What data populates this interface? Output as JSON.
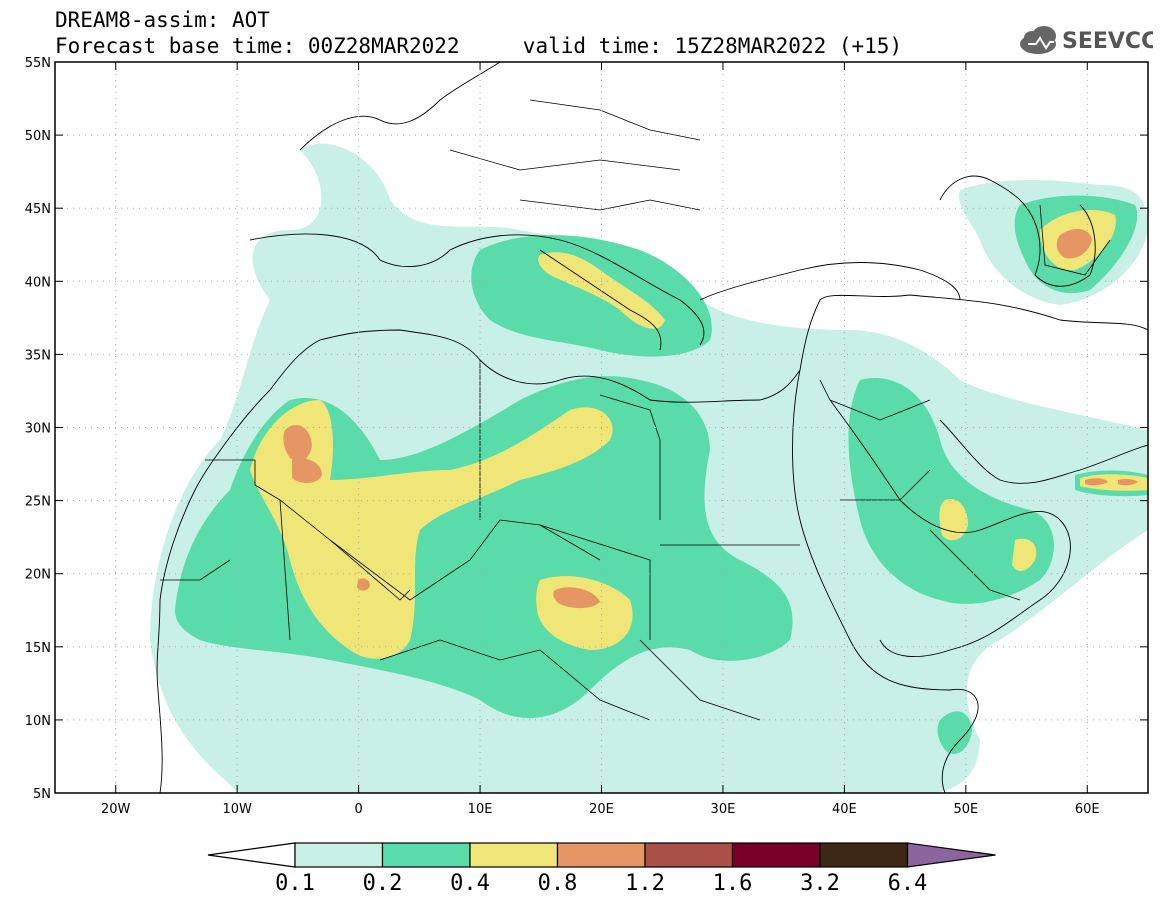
{
  "header": {
    "title_line1": "DREAM8-assim: AOT",
    "base_time_label": "Forecast base time: 00Z28MAR2022",
    "valid_time_label": "valid time: 15Z28MAR2022 (+15)"
  },
  "logo": {
    "text": "SEEVCCC",
    "icon": "cloud-icon"
  },
  "map": {
    "projection": "cylindrical equidistant",
    "lon_range": [
      -25,
      65
    ],
    "lat_range": [
      5,
      55
    ],
    "grid": "dotted",
    "lon_ticks": [
      {
        "value": -20,
        "label": "20W"
      },
      {
        "value": -10,
        "label": "10W"
      },
      {
        "value": 0,
        "label": "0"
      },
      {
        "value": 10,
        "label": "10E"
      },
      {
        "value": 20,
        "label": "20E"
      },
      {
        "value": 30,
        "label": "30E"
      },
      {
        "value": 40,
        "label": "40E"
      },
      {
        "value": 50,
        "label": "50E"
      },
      {
        "value": 60,
        "label": "60E"
      }
    ],
    "lat_ticks": [
      {
        "value": 55,
        "label": "55N"
      },
      {
        "value": 50,
        "label": "50N"
      },
      {
        "value": 45,
        "label": "45N"
      },
      {
        "value": 40,
        "label": "40N"
      },
      {
        "value": 35,
        "label": "35N"
      },
      {
        "value": 30,
        "label": "30N"
      },
      {
        "value": 25,
        "label": "25N"
      },
      {
        "value": 20,
        "label": "20N"
      },
      {
        "value": 15,
        "label": "15N"
      },
      {
        "value": 10,
        "label": "10N"
      },
      {
        "value": 5,
        "label": "5N"
      }
    ]
  },
  "colorbar": {
    "colors": [
      "#c8f0e6",
      "#5adcaa",
      "#f0e678",
      "#e69664",
      "#aa5046",
      "#780028",
      "#3c2814",
      "#8c64a0"
    ],
    "below_color": "#ffffff",
    "labels": [
      "0.1",
      "0.2",
      "0.4",
      "0.8",
      "1.2",
      "1.6",
      "3.2",
      "6.4"
    ]
  }
}
